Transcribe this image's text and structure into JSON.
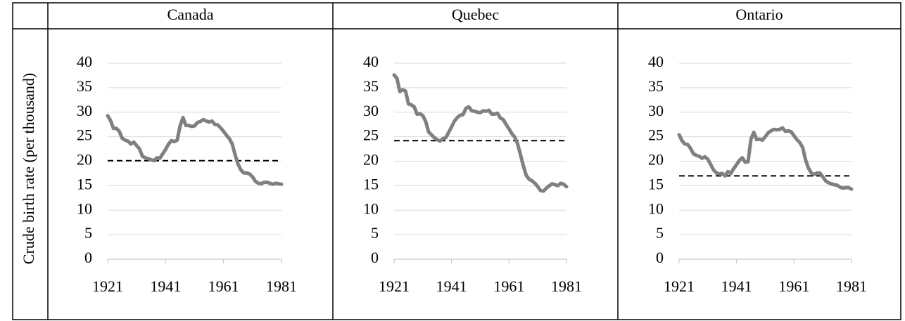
{
  "chart_data": [
    {
      "type": "line",
      "title": "Canada",
      "ylabel": "Crude birth rate (per thousand)",
      "x": [
        1921,
        1922,
        1923,
        1924,
        1925,
        1926,
        1927,
        1928,
        1929,
        1930,
        1931,
        1932,
        1933,
        1934,
        1935,
        1936,
        1937,
        1938,
        1939,
        1940,
        1941,
        1942,
        1943,
        1944,
        1945,
        1946,
        1947,
        1948,
        1949,
        1950,
        1951,
        1952,
        1953,
        1954,
        1955,
        1956,
        1957,
        1958,
        1959,
        1960,
        1961,
        1962,
        1963,
        1964,
        1965,
        1966,
        1967,
        1968,
        1969,
        1970,
        1971,
        1972,
        1973,
        1974,
        1975,
        1976,
        1977,
        1978,
        1979,
        1980,
        1981
      ],
      "series": [
        {
          "color": "#808080",
          "values": [
            29.3,
            28.3,
            26.7,
            26.7,
            26.1,
            24.7,
            24.3,
            24.1,
            23.5,
            23.9,
            23.2,
            22.5,
            21.0,
            20.7,
            20.5,
            20.3,
            20.1,
            20.7,
            20.6,
            21.5,
            22.4,
            23.5,
            24.2,
            24.0,
            24.3,
            27.2,
            28.9,
            27.3,
            27.3,
            27.1,
            27.2,
            27.9,
            28.1,
            28.5,
            28.2,
            28.0,
            28.2,
            27.5,
            27.4,
            26.8,
            26.1,
            25.3,
            24.6,
            23.5,
            21.3,
            19.4,
            18.2,
            17.6,
            17.6,
            17.4,
            16.8,
            15.9,
            15.5,
            15.4,
            15.7,
            15.7,
            15.5,
            15.3,
            15.5,
            15.4,
            15.3
          ]
        }
      ],
      "reference_line": 20.1,
      "reference_color": "#000000",
      "xlim": [
        1921,
        1981
      ],
      "xticks": [
        1921,
        1941,
        1961,
        1981
      ],
      "ylim": [
        0,
        40
      ],
      "yticks": [
        0,
        5,
        10,
        15,
        20,
        25,
        30,
        35,
        40
      ],
      "grid": true
    },
    {
      "type": "line",
      "title": "Quebec",
      "x": [
        1921,
        1922,
        1923,
        1924,
        1925,
        1926,
        1927,
        1928,
        1929,
        1930,
        1931,
        1932,
        1933,
        1934,
        1935,
        1936,
        1937,
        1938,
        1939,
        1940,
        1941,
        1942,
        1943,
        1944,
        1945,
        1946,
        1947,
        1948,
        1949,
        1950,
        1951,
        1952,
        1953,
        1954,
        1955,
        1956,
        1957,
        1958,
        1959,
        1960,
        1961,
        1962,
        1963,
        1964,
        1965,
        1966,
        1967,
        1968,
        1969,
        1970,
        1971,
        1972,
        1973,
        1974,
        1975,
        1976,
        1977,
        1978,
        1979,
        1980,
        1981
      ],
      "series": [
        {
          "color": "#808080",
          "values": [
            37.6,
            36.9,
            34.2,
            34.6,
            34.3,
            31.7,
            31.5,
            31.1,
            29.6,
            29.7,
            29.3,
            28.1,
            26.0,
            25.4,
            24.8,
            24.4,
            24.1,
            24.6,
            24.8,
            25.9,
            27.0,
            28.2,
            28.9,
            29.4,
            29.5,
            30.8,
            31.1,
            30.3,
            30.2,
            30.0,
            29.9,
            30.3,
            30.2,
            30.4,
            29.6,
            29.6,
            29.8,
            28.8,
            28.5,
            27.5,
            26.6,
            25.6,
            24.9,
            23.5,
            21.3,
            19.0,
            17.1,
            16.3,
            16.0,
            15.5,
            14.8,
            14.0,
            13.9,
            14.5,
            15.0,
            15.4,
            15.2,
            15.0,
            15.5,
            15.3,
            14.8
          ]
        }
      ],
      "reference_line": 24.2,
      "reference_color": "#000000",
      "xlim": [
        1921,
        1981
      ],
      "xticks": [
        1921,
        1941,
        1961,
        1981
      ],
      "ylim": [
        0,
        40
      ],
      "yticks": [
        0,
        5,
        10,
        15,
        20,
        25,
        30,
        35,
        40
      ],
      "grid": true
    },
    {
      "type": "line",
      "title": "Ontario",
      "x": [
        1921,
        1922,
        1923,
        1924,
        1925,
        1926,
        1927,
        1928,
        1929,
        1930,
        1931,
        1932,
        1933,
        1934,
        1935,
        1936,
        1937,
        1938,
        1939,
        1940,
        1941,
        1942,
        1943,
        1944,
        1945,
        1946,
        1947,
        1948,
        1949,
        1950,
        1951,
        1952,
        1953,
        1954,
        1955,
        1956,
        1957,
        1958,
        1959,
        1960,
        1961,
        1962,
        1963,
        1964,
        1965,
        1966,
        1967,
        1968,
        1969,
        1970,
        1971,
        1972,
        1973,
        1974,
        1975,
        1976,
        1977,
        1978,
        1979,
        1980,
        1981
      ],
      "series": [
        {
          "color": "#808080",
          "values": [
            25.4,
            24.2,
            23.5,
            23.4,
            22.6,
            21.5,
            21.2,
            21.0,
            20.6,
            20.9,
            20.4,
            19.3,
            18.2,
            17.6,
            17.4,
            17.5,
            17.0,
            17.9,
            17.5,
            18.5,
            19.3,
            20.2,
            20.7,
            19.8,
            19.9,
            24.5,
            25.9,
            24.4,
            24.5,
            24.3,
            25.0,
            25.8,
            26.2,
            26.5,
            26.4,
            26.5,
            26.8,
            26.1,
            26.2,
            26.0,
            25.2,
            24.4,
            23.8,
            22.8,
            20.3,
            18.6,
            17.6,
            17.3,
            17.6,
            17.6,
            16.8,
            16.0,
            15.6,
            15.4,
            15.2,
            15.1,
            14.7,
            14.5,
            14.6,
            14.6,
            14.3
          ]
        }
      ],
      "reference_line": 17.0,
      "reference_color": "#000000",
      "xlim": [
        1921,
        1981
      ],
      "xticks": [
        1921,
        1941,
        1961,
        1981
      ],
      "ylim": [
        0,
        40
      ],
      "yticks": [
        0,
        5,
        10,
        15,
        20,
        25,
        30,
        35,
        40
      ],
      "grid": true
    }
  ]
}
